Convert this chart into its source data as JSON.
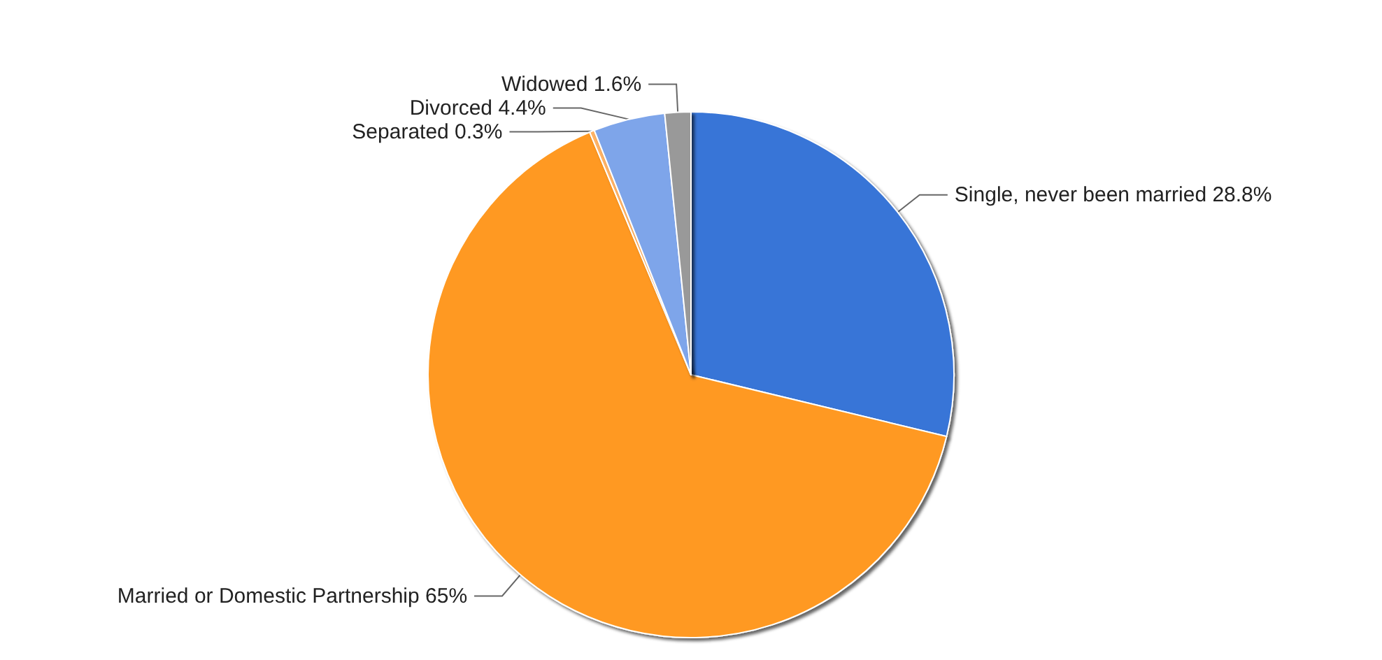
{
  "chart_data": {
    "type": "pie",
    "categories": [
      "Single, never been married",
      "Married or Domestic Partnership",
      "Separated",
      "Divorced",
      "Widowed"
    ],
    "values": [
      28.8,
      65,
      0.3,
      4.4,
      1.6
    ],
    "value_labels": [
      "28.8%",
      "65%",
      "0.3%",
      "4.4%",
      "1.6%"
    ],
    "colors": [
      "#3875d7",
      "#ff9920",
      "#ffb366",
      "#7ea5ea",
      "#999999"
    ]
  }
}
